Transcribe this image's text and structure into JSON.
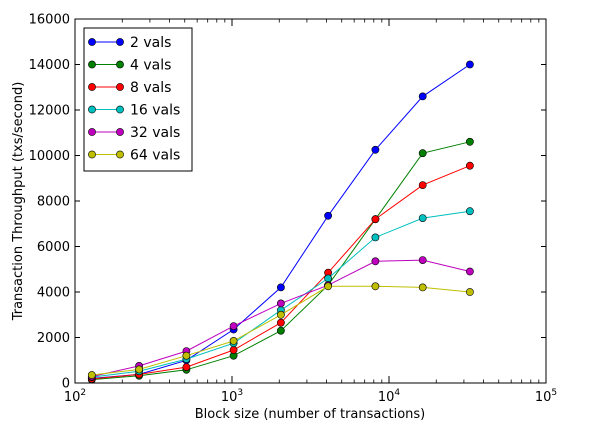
{
  "chart_data": {
    "type": "line",
    "title": "",
    "xlabel": "Block size (number of transactions)",
    "ylabel": "Transaction Throughput (txs/second)",
    "xscale": "log",
    "xlim": [
      100,
      100000
    ],
    "ylim": [
      0,
      16000
    ],
    "x_tick_labels": [
      {
        "base": "10",
        "exp": "2"
      },
      {
        "base": "10",
        "exp": "3"
      },
      {
        "base": "10",
        "exp": "4"
      },
      {
        "base": "10",
        "exp": "5"
      }
    ],
    "x_ticks": [
      100,
      1000,
      10000,
      100000
    ],
    "y_ticks": [
      0,
      2000,
      4000,
      6000,
      8000,
      10000,
      12000,
      14000,
      16000
    ],
    "y_tick_labels": [
      "0",
      "2000",
      "4000",
      "6000",
      "8000",
      "10000",
      "12000",
      "14000",
      "16000"
    ],
    "grid": false,
    "legend_position": "top-left",
    "x": [
      128,
      256,
      512,
      1024,
      2048,
      4096,
      8192,
      16384,
      32768
    ],
    "series": [
      {
        "name": "2 vals",
        "color": "#0000ff",
        "values": [
          200,
          380,
          1000,
          2350,
          4200,
          7350,
          10250,
          12600,
          14000
        ]
      },
      {
        "name": "4 vals",
        "color": "#008000",
        "values": [
          150,
          320,
          580,
          1200,
          2300,
          4300,
          7200,
          10100,
          10600
        ]
      },
      {
        "name": "8 vals",
        "color": "#ff0000",
        "values": [
          180,
          380,
          700,
          1450,
          2650,
          4850,
          7200,
          8700,
          9550
        ]
      },
      {
        "name": "16 vals",
        "color": "#00bfbf",
        "values": [
          260,
          520,
          1050,
          1750,
          3200,
          4600,
          6400,
          7250,
          7550
        ]
      },
      {
        "name": "32 vals",
        "color": "#bf00bf",
        "values": [
          280,
          750,
          1400,
          2500,
          3500,
          4300,
          5350,
          5400,
          4900
        ]
      },
      {
        "name": "64 vals",
        "color": "#bfbf00",
        "values": [
          350,
          600,
          1200,
          1850,
          3000,
          4250,
          4250,
          4200,
          4000
        ]
      }
    ]
  }
}
